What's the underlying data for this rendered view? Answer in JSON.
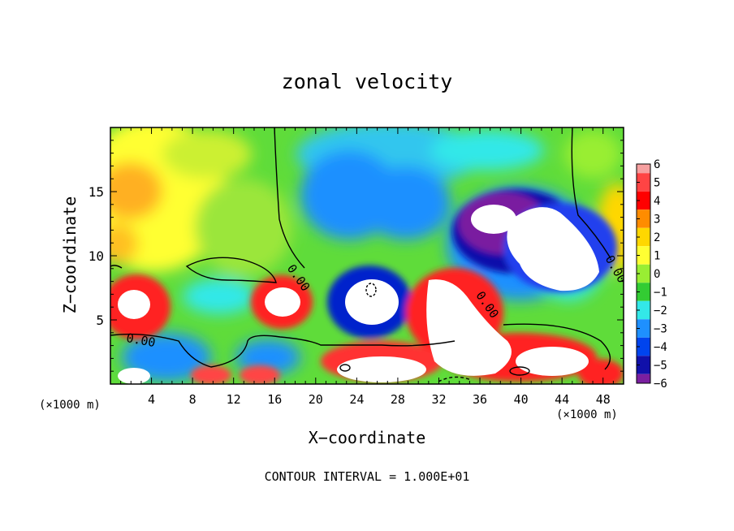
{
  "chart_data": {
    "type": "heatmap",
    "title": "zonal velocity",
    "xlabel": "X−coordinate",
    "ylabel": "Z−coordinate",
    "x_unit_left": "(×1000 m)",
    "x_unit_right": "(×1000 m)",
    "note": "CONTOUR INTERVAL = 1.000E+01",
    "xlim": [
      0,
      50
    ],
    "ylim": [
      0,
      20
    ],
    "x_ticks": [
      4,
      8,
      12,
      16,
      20,
      24,
      28,
      32,
      36,
      40,
      44,
      48
    ],
    "y_ticks": [
      5,
      10,
      15
    ],
    "colorbar": {
      "levels": [
        6,
        5,
        4,
        3,
        2,
        1,
        0,
        -1,
        -2,
        -3,
        -4,
        -5,
        -6
      ],
      "labels": [
        "6",
        "5",
        "4",
        "3",
        "2",
        "1",
        "0",
        "−1",
        "−2",
        "−3",
        "−4",
        "−5",
        "−6"
      ],
      "colors": [
        "#f6a0a0",
        "#ff4444",
        "#ff0000",
        "#ff8c00",
        "#ffd700",
        "#ffff33",
        "#99ee33",
        "#33cc33",
        "#33e8e8",
        "#1e90ff",
        "#0044ee",
        "#1010aa",
        "#7a1fa0"
      ]
    },
    "contour_labels": [
      {
        "text": "0.00",
        "x": 2.9,
        "z": 3.1
      },
      {
        "text": "0.00",
        "x": 18.0,
        "z": 8.1
      },
      {
        "text": "0.00",
        "x": 36.4,
        "z": 6.0
      },
      {
        "text": "0.00",
        "x": 48.9,
        "z": 8.8
      }
    ]
  }
}
